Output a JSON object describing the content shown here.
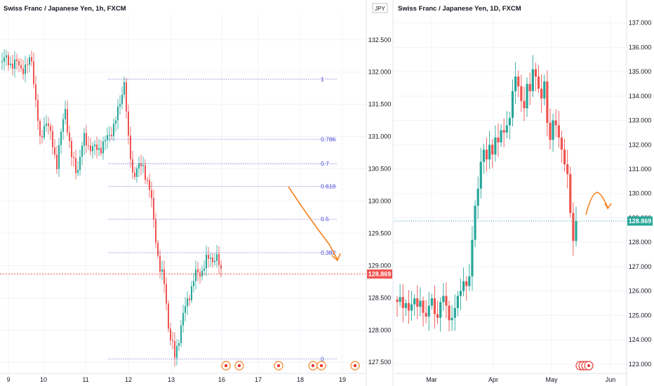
{
  "chart_data": [
    {
      "type": "candlestick",
      "title": "Swiss Franc / Japanese Yen, 1h, FXCM",
      "currency": "",
      "x_ticks": [
        "9",
        "10",
        "11",
        "12",
        "13",
        "16",
        "17",
        "18",
        "19"
      ],
      "y_ticks": [
        "127.500",
        "128.000",
        "128.500",
        "129.000",
        "129.500",
        "130.000",
        "130.500",
        "131.000",
        "131.500",
        "132.000",
        "132.500"
      ],
      "ylim": [
        127.35,
        132.9
      ],
      "last_price": "128.869",
      "fib_levels": [
        {
          "label": "1",
          "value": 131.89
        },
        {
          "label": "0.786",
          "value": 130.96
        },
        {
          "label": "0.7",
          "value": 130.58
        },
        {
          "label": "0.618",
          "value": 130.23
        },
        {
          "label": "0.5",
          "value": 129.72
        },
        {
          "label": "0.382",
          "value": 129.2
        },
        {
          "label": "0",
          "value": 127.55
        }
      ],
      "event_markers": 7,
      "colors": {
        "up": "#26a69a",
        "down": "#ef5350",
        "fib": "#7b7bd9",
        "arrow": "#f5821f",
        "price_line": "#ef5350"
      }
    },
    {
      "type": "candlestick",
      "title": "Swiss Franc / Japanese Yen, 1D, FXCM",
      "currency": "JPY",
      "x_ticks": [
        "Mar",
        "Apr",
        "May",
        "Jun"
      ],
      "y_ticks": [
        "123.000",
        "124.000",
        "125.000",
        "126.000",
        "127.000",
        "128.000",
        "129.000",
        "130.000",
        "131.000",
        "132.000",
        "133.000",
        "134.000",
        "135.000",
        "136.000",
        "137.000"
      ],
      "ylim": [
        122.85,
        137.25
      ],
      "last_price": "128.869",
      "event_markers": 4,
      "colors": {
        "up": "#26a69a",
        "down": "#ef5350",
        "arrow": "#f5821f",
        "price_line": "#26a69a"
      }
    }
  ]
}
